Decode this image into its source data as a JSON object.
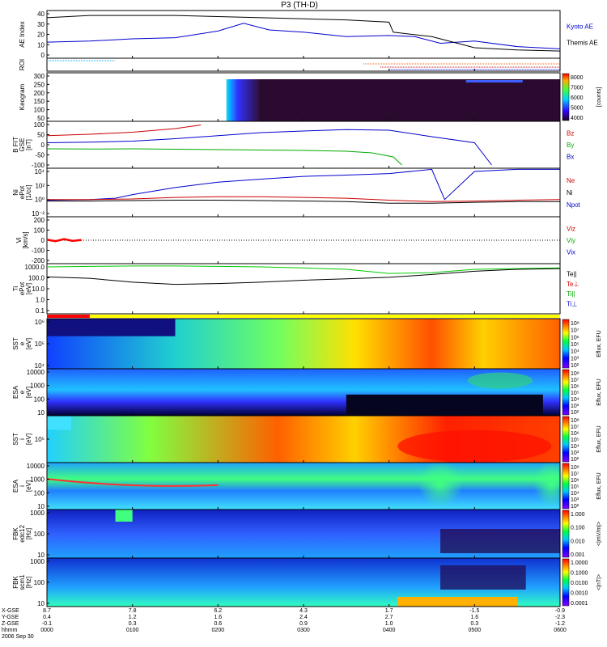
{
  "title": "P3 (TH-D)",
  "panels": [
    {
      "id": "ae",
      "ylabel": [
        "AE Index"
      ],
      "ticks": [
        "40",
        "30",
        "20",
        "10",
        "0"
      ],
      "legend": [
        {
          "text": "Kyoto AE",
          "color": "#0000cc"
        },
        {
          "text": "Themis AE",
          "color": "#000000"
        }
      ]
    },
    {
      "id": "roi",
      "ylabel": [
        "ROI"
      ],
      "ticks": [],
      "legend": []
    },
    {
      "id": "keogram",
      "ylabel": [
        "Keogram"
      ],
      "ticks": [
        "300",
        "250",
        "200",
        "150",
        "100",
        "50"
      ],
      "colorbar": {
        "ticks": [
          "8000",
          "7000",
          "6000",
          "5000",
          "4000"
        ],
        "label": "[counts]"
      },
      "legend": []
    },
    {
      "id": "bfield",
      "ylabel": [
        "B FIT",
        "GSE",
        "[nT]"
      ],
      "ticks": [
        "100",
        "50",
        "0",
        "-50",
        "-100"
      ],
      "legend": [
        {
          "text": "Bz",
          "color": "#cc0000"
        },
        {
          "text": "By",
          "color": "#00aa00"
        },
        {
          "text": "Bx",
          "color": "#0000cc"
        }
      ]
    },
    {
      "id": "density",
      "ylabel": [
        "Ni",
        "ePot",
        "[1/cc]"
      ],
      "ticks": [
        "10⁴",
        "10²",
        "10⁰",
        "10⁻²"
      ],
      "legend": [
        {
          "text": "Ne",
          "color": "#cc0000"
        },
        {
          "text": "Ni",
          "color": "#000000"
        },
        {
          "text": "Npot",
          "color": "#0000cc"
        }
      ]
    },
    {
      "id": "velocity",
      "ylabel": [
        "Vi",
        "[km/s]"
      ],
      "ticks": [
        "200",
        "100",
        "0",
        "-100",
        "-200"
      ],
      "legend": [
        {
          "text": "Viz",
          "color": "#cc0000"
        },
        {
          "text": "Viy",
          "color": "#00aa00"
        },
        {
          "text": "Vix",
          "color": "#0000cc"
        }
      ]
    },
    {
      "id": "temp",
      "ylabel": [
        "Ti",
        "ePot",
        "[eV]"
      ],
      "ticks": [
        "1000.0",
        "100.0",
        "10.0",
        "1.0",
        "0.1"
      ],
      "legend": [
        {
          "text": "Te||",
          "color": "#000000"
        },
        {
          "text": "Te⊥",
          "color": "#cc0000"
        },
        {
          "text": "Ti||",
          "color": "#00aa00"
        },
        {
          "text": "Ti⊥",
          "color": "#0000cc"
        }
      ]
    },
    {
      "id": "sst_e",
      "ylabel": [
        "SST",
        "e",
        "[eV]"
      ],
      "ticks": [
        "10⁶",
        "10⁵",
        "10⁴"
      ],
      "colorbar": {
        "ticks": [
          "10⁸",
          "10⁷",
          "10⁶",
          "10⁵",
          "10⁴",
          "10³",
          "10²"
        ],
        "label": "Eflux, EFU"
      },
      "legend": []
    },
    {
      "id": "esa_e",
      "ylabel": [
        "ESA",
        "e",
        "[eV]"
      ],
      "ticks": [
        "10000",
        "1000",
        "100",
        "10"
      ],
      "colorbar": {
        "ticks": [
          "10⁸",
          "10⁷",
          "10⁶",
          "10⁵",
          "10⁴",
          "10³",
          "10²"
        ],
        "label": "Eflux, EFU"
      },
      "legend": []
    },
    {
      "id": "sst_i",
      "ylabel": [
        "SST",
        "i",
        "[eV]"
      ],
      "ticks": [
        "10⁵"
      ],
      "colorbar": {
        "ticks": [
          "10⁸",
          "10⁷",
          "10⁶",
          "10⁵",
          "10⁴",
          "10³",
          "10²"
        ],
        "label": "Eflux, EFU"
      },
      "legend": []
    },
    {
      "id": "esa_i",
      "ylabel": [
        "ESA",
        "i",
        "[eV]"
      ],
      "ticks": [
        "10000",
        "1000",
        "100",
        "10"
      ],
      "colorbar": {
        "ticks": [
          "10⁸",
          "10⁷",
          "10⁶",
          "10⁵",
          "10⁴",
          "10³",
          "10²"
        ],
        "label": "Eflux, EFU"
      },
      "legend": []
    },
    {
      "id": "fbk_e",
      "ylabel": [
        "FBK",
        "edc12",
        "[Hz]"
      ],
      "ticks": [
        "1000",
        "100",
        "10"
      ],
      "colorbar": {
        "ticks": [
          "1.000",
          "0.100",
          "0.010",
          "0.001"
        ],
        "label": "<|mV/m|>"
      },
      "legend": []
    },
    {
      "id": "fbk_b",
      "ylabel": [
        "FBK",
        "scm1",
        "[Hz]"
      ],
      "ticks": [
        "1000",
        "100",
        "10"
      ],
      "colorbar": {
        "ticks": [
          "1.0000",
          "0.1000",
          "0.0100",
          "0.0010",
          "0.0001"
        ],
        "label": "<|nT|>"
      },
      "legend": []
    }
  ],
  "xaxis": {
    "row_labels": [
      "X-GSE",
      "Y-GSE",
      "Z-GSE",
      "hhmm",
      "2006 Sep 30"
    ],
    "ticks": [
      {
        "x": "8.7",
        "y": "0.4",
        "z": "-0.1",
        "time": "0000"
      },
      {
        "x": "7.8",
        "y": "1.2",
        "z": "0.3",
        "time": "0100"
      },
      {
        "x": "6.2",
        "y": "1.6",
        "z": "0.6",
        "time": "0200"
      },
      {
        "x": "4.3",
        "y": "2.4",
        "z": "0.9",
        "time": "0300"
      },
      {
        "x": "1.7",
        "y": "2.7",
        "z": "1.0",
        "time": "0400"
      },
      {
        "x": "-1.5",
        "y": "1.6",
        "z": "0.3",
        "time": "0500"
      },
      {
        "x": "-0.9",
        "y": "-2.3",
        "z": "-1.2",
        "time": "0600"
      }
    ]
  },
  "chart_data": {
    "type": "line",
    "title": "P3 (TH-D)",
    "x_range_hours": [
      0,
      6
    ],
    "series": [
      {
        "name": "Kyoto AE",
        "panel": "ae",
        "x": [
          0,
          0.5,
          1,
          1.5,
          2,
          2.3,
          2.6,
          3,
          3.5,
          4,
          4.3,
          4.6,
          5,
          5.5,
          6
        ],
        "values": [
          13,
          14,
          16,
          17,
          23,
          30,
          24,
          22,
          18,
          19,
          18,
          12,
          14,
          9,
          7
        ]
      },
      {
        "name": "Themis AE",
        "panel": "ae",
        "x": [
          0,
          0.5,
          1,
          1.5,
          2,
          2.5,
          3,
          3.5,
          4,
          4.05,
          4.5,
          5,
          5.5,
          6
        ],
        "values": [
          35,
          37,
          37,
          37,
          36,
          35,
          34,
          33,
          31,
          22,
          18,
          8,
          6,
          5
        ]
      },
      {
        "name": "Bz",
        "panel": "bfield",
        "x": [
          0,
          0.5,
          1,
          1.5,
          1.8
        ],
        "values": [
          45,
          52,
          62,
          80,
          98
        ]
      },
      {
        "name": "By",
        "panel": "bfield",
        "x": [
          0,
          0.5,
          1,
          1.5,
          2,
          2.5,
          3,
          3.5,
          3.8,
          4.05,
          4.15
        ],
        "values": [
          -20,
          -21,
          -20,
          -22,
          -24,
          -26,
          -28,
          -32,
          -40,
          -60,
          -100
        ]
      },
      {
        "name": "Bx",
        "panel": "bfield",
        "x": [
          0,
          0.5,
          1,
          1.5,
          2,
          2.5,
          3,
          3.5,
          4,
          4.5,
          5,
          5.2
        ],
        "values": [
          10,
          13,
          18,
          30,
          45,
          60,
          68,
          75,
          72,
          40,
          10,
          -100
        ]
      },
      {
        "name": "Npot",
        "panel": "density",
        "x": [
          0,
          0.5,
          0.8,
          1,
          1.5,
          2,
          2.5,
          3,
          3.5,
          4,
          4.5,
          4.65,
          5,
          5.5,
          6
        ],
        "values": [
          0.8,
          1,
          1.5,
          5,
          50,
          300,
          800,
          2000,
          3000,
          5000,
          20000,
          1,
          10000,
          20000,
          20000
        ]
      },
      {
        "name": "Ne",
        "panel": "density",
        "x": [
          0,
          0.5,
          1,
          1.5,
          2,
          2.5,
          3,
          3.5,
          4,
          4.5,
          5,
          5.5,
          6
        ],
        "values": [
          1,
          1,
          1.2,
          2,
          2.5,
          2.5,
          2,
          1.5,
          0.8,
          0.5,
          0.6,
          0.8,
          1
        ]
      },
      {
        "name": "Ni",
        "panel": "density",
        "x": [
          0,
          0.5,
          1,
          1.5,
          2,
          2.5,
          3,
          3.5,
          4,
          4.5,
          5,
          5.5,
          6
        ],
        "values": [
          0.6,
          0.6,
          0.7,
          0.8,
          0.8,
          0.7,
          0.6,
          0.5,
          0.3,
          0.3,
          0.4,
          0.5,
          0.5
        ]
      },
      {
        "name": "Viz",
        "panel": "velocity",
        "x": [
          0,
          0.1,
          0.2,
          0.3,
          0.4
        ],
        "values": [
          5,
          -10,
          12,
          -8,
          3
        ]
      },
      {
        "name": "Ti||",
        "panel": "temp",
        "x": [
          0,
          0.5,
          1,
          1.5,
          2,
          2.5,
          3,
          3.5,
          4,
          4.5,
          5,
          5.5,
          6
        ],
        "values": [
          1000,
          1100,
          1200,
          1200,
          1100,
          1000,
          800,
          600,
          250,
          300,
          600,
          700,
          800
        ]
      },
      {
        "name": "Te||",
        "panel": "temp",
        "x": [
          0,
          0.5,
          1,
          1.5,
          2,
          2.5,
          3,
          3.5,
          4,
          4.5,
          5,
          5.5,
          6
        ],
        "values": [
          120,
          90,
          40,
          25,
          30,
          40,
          60,
          80,
          110,
          200,
          400,
          600,
          700
        ]
      }
    ]
  }
}
